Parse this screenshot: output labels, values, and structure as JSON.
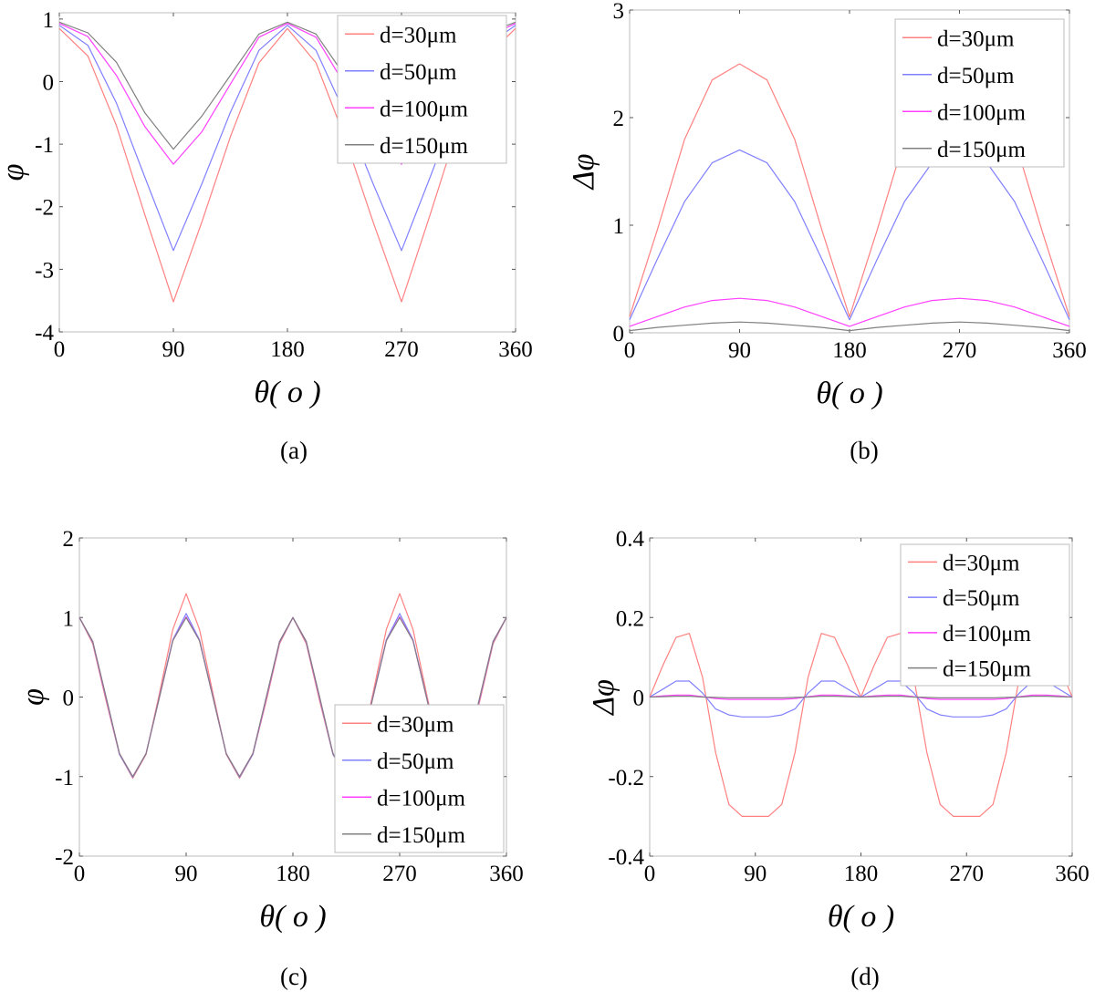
{
  "figure": {
    "captions": [
      "(a)",
      "(b)",
      "(c)",
      "(d)"
    ]
  },
  "chart_data": [
    {
      "type": "line",
      "panel": "(a)",
      "xlabel": "θ( o )",
      "ylabel": "φ",
      "xlim": [
        0,
        360
      ],
      "ylim": [
        -4,
        1.1
      ],
      "xticks": [
        0,
        90,
        180,
        270,
        360
      ],
      "yticks": [
        -4,
        -3,
        -2,
        -1,
        0,
        1
      ],
      "grid": false,
      "legend_position": "top-right",
      "x": [
        0,
        22.5,
        45,
        67.5,
        90,
        112.5,
        135,
        157.5,
        180,
        202.5,
        225,
        247.5,
        270,
        292.5,
        315,
        337.5,
        360
      ],
      "series": [
        {
          "name": "d=30μm",
          "color": "#ff8080",
          "values": [
            0.85,
            0.41,
            -0.7,
            -2.13,
            -3.52,
            -2.24,
            -0.88,
            0.3,
            0.85,
            0.3,
            -0.88,
            -2.24,
            -3.52,
            -2.13,
            -0.7,
            0.41,
            0.85
          ]
        },
        {
          "name": "d=50μm",
          "color": "#8080ff",
          "values": [
            0.9,
            0.58,
            -0.34,
            -1.53,
            -2.7,
            -1.63,
            -0.49,
            0.5,
            0.9,
            0.5,
            -0.49,
            -1.63,
            -2.7,
            -1.53,
            -0.34,
            0.58,
            0.9
          ]
        },
        {
          "name": "d=100μm",
          "color": "#ff40ff",
          "values": [
            0.93,
            0.72,
            0.1,
            -0.72,
            -1.32,
            -0.8,
            -0.04,
            0.71,
            0.93,
            0.71,
            -0.04,
            -0.8,
            -1.32,
            -0.72,
            0.1,
            0.72,
            0.93
          ]
        },
        {
          "name": "d=150μm",
          "color": "#808080",
          "values": [
            0.95,
            0.78,
            0.31,
            -0.5,
            -1.08,
            -0.55,
            0.1,
            0.76,
            0.95,
            0.76,
            0.1,
            -0.55,
            -1.08,
            -0.5,
            0.31,
            0.78,
            0.95
          ]
        }
      ]
    },
    {
      "type": "line",
      "panel": "(b)",
      "xlabel": "θ( o )",
      "ylabel": "Δφ",
      "xlim": [
        0,
        360
      ],
      "ylim": [
        0,
        3
      ],
      "xticks": [
        0,
        90,
        180,
        270,
        360
      ],
      "yticks": [
        0,
        1,
        2,
        3
      ],
      "grid": false,
      "legend_position": "top-right",
      "x": [
        0,
        22.5,
        45,
        67.5,
        90,
        112.5,
        135,
        157.5,
        180,
        202.5,
        225,
        247.5,
        270,
        292.5,
        315,
        337.5,
        360
      ],
      "series": [
        {
          "name": "d=30μm",
          "color": "#ff8080",
          "values": [
            0.15,
            0.95,
            1.8,
            2.35,
            2.5,
            2.35,
            1.8,
            0.95,
            0.15,
            0.95,
            1.8,
            2.35,
            2.5,
            2.35,
            1.8,
            0.95,
            0.15
          ]
        },
        {
          "name": "d=50μm",
          "color": "#8080ff",
          "values": [
            0.12,
            0.68,
            1.22,
            1.58,
            1.7,
            1.58,
            1.22,
            0.68,
            0.12,
            0.68,
            1.22,
            1.58,
            1.7,
            1.58,
            1.22,
            0.68,
            0.12
          ]
        },
        {
          "name": "d=100μm",
          "color": "#ff40ff",
          "values": [
            0.06,
            0.15,
            0.24,
            0.3,
            0.32,
            0.3,
            0.24,
            0.15,
            0.06,
            0.15,
            0.24,
            0.3,
            0.32,
            0.3,
            0.24,
            0.15,
            0.06
          ]
        },
        {
          "name": "d=150μm",
          "color": "#808080",
          "values": [
            0.02,
            0.05,
            0.07,
            0.09,
            0.1,
            0.09,
            0.07,
            0.05,
            0.02,
            0.05,
            0.07,
            0.09,
            0.1,
            0.09,
            0.07,
            0.05,
            0.02
          ]
        }
      ]
    },
    {
      "type": "line",
      "panel": "(c)",
      "xlabel": "θ( o )",
      "ylabel": "φ",
      "xlim": [
        0,
        360
      ],
      "ylim": [
        -2,
        2
      ],
      "xticks": [
        0,
        90,
        180,
        270,
        360
      ],
      "yticks": [
        -2,
        -1,
        0,
        1,
        2
      ],
      "grid": false,
      "legend_position": "bottom-right",
      "x": [
        0,
        11.25,
        22.5,
        33.75,
        45,
        56.25,
        67.5,
        78.75,
        90,
        101.25,
        112.5,
        123.75,
        135,
        146.25,
        157.5,
        168.75,
        180,
        191.25,
        202.5,
        213.75,
        225,
        236.25,
        247.5,
        258.75,
        270,
        281.25,
        292.5,
        303.75,
        315,
        326.25,
        337.5,
        348.75,
        360
      ],
      "series": [
        {
          "name": "d=30μm",
          "color": "#ff8080",
          "values": [
            1,
            0.67,
            -0.05,
            -0.72,
            -1.02,
            -0.72,
            0.05,
            0.85,
            1.3,
            0.85,
            0.05,
            -0.72,
            -1.02,
            -0.72,
            -0.05,
            0.67,
            1,
            0.67,
            -0.05,
            -0.72,
            -1.02,
            -0.72,
            0.05,
            0.85,
            1.3,
            0.85,
            0.05,
            -0.72,
            -1.02,
            -0.72,
            -0.05,
            0.67,
            1
          ]
        },
        {
          "name": "d=50μm",
          "color": "#8080ff",
          "values": [
            1,
            0.69,
            -0.02,
            -0.72,
            -1.01,
            -0.71,
            0.01,
            0.72,
            1.05,
            0.72,
            0.01,
            -0.71,
            -1.01,
            -0.72,
            -0.02,
            0.69,
            1,
            0.69,
            -0.02,
            -0.72,
            -1.01,
            -0.71,
            0.01,
            0.72,
            1.05,
            0.72,
            0.01,
            -0.71,
            -1.01,
            -0.72,
            -0.02,
            0.69,
            1
          ]
        },
        {
          "name": "d=100μm",
          "color": "#ff40ff",
          "values": [
            1,
            0.7,
            -0.01,
            -0.71,
            -1.0,
            -0.71,
            0.0,
            0.71,
            1.01,
            0.71,
            0.0,
            -0.71,
            -1.0,
            -0.71,
            -0.01,
            0.7,
            1,
            0.7,
            -0.01,
            -0.71,
            -1.0,
            -0.71,
            0.0,
            0.71,
            1.01,
            0.71,
            0.0,
            -0.71,
            -1.0,
            -0.71,
            -0.01,
            0.7,
            1
          ]
        },
        {
          "name": "d=150μm",
          "color": "#808080",
          "values": [
            1,
            0.7,
            0.0,
            -0.71,
            -1.0,
            -0.71,
            0.0,
            0.71,
            1.0,
            0.71,
            0.0,
            -0.71,
            -1.0,
            -0.71,
            0.0,
            0.7,
            1,
            0.7,
            0.0,
            -0.71,
            -1.0,
            -0.71,
            0.0,
            0.71,
            1.0,
            0.71,
            0.0,
            -0.71,
            -1.0,
            -0.71,
            0.0,
            0.7,
            1
          ]
        }
      ]
    },
    {
      "type": "line",
      "panel": "(d)",
      "xlabel": "θ( o )",
      "ylabel": "Δφ",
      "xlim": [
        0,
        360
      ],
      "ylim": [
        -0.4,
        0.4
      ],
      "xticks": [
        0,
        90,
        180,
        270,
        360
      ],
      "yticks": [
        -0.4,
        -0.2,
        0,
        0.2,
        0.4
      ],
      "grid": false,
      "legend_position": "top-right",
      "x": [
        0,
        11.25,
        22.5,
        33.75,
        45,
        56.25,
        67.5,
        78.75,
        90,
        101.25,
        112.5,
        123.75,
        135,
        146.25,
        157.5,
        168.75,
        180,
        191.25,
        202.5,
        213.75,
        225,
        236.25,
        247.5,
        258.75,
        270,
        281.25,
        292.5,
        303.75,
        315,
        326.25,
        337.5,
        348.75,
        360
      ],
      "series": [
        {
          "name": "d=30μm",
          "color": "#ff8080",
          "values": [
            0,
            0.08,
            0.15,
            0.16,
            0.05,
            -0.14,
            -0.27,
            -0.3,
            -0.3,
            -0.3,
            -0.27,
            -0.14,
            0.05,
            0.16,
            0.15,
            0.08,
            0,
            0.08,
            0.15,
            0.16,
            0.05,
            -0.14,
            -0.27,
            -0.3,
            -0.3,
            -0.3,
            -0.27,
            -0.14,
            0.05,
            0.16,
            0.15,
            0.08,
            0
          ]
        },
        {
          "name": "d=50μm",
          "color": "#8080ff",
          "values": [
            0,
            0.02,
            0.04,
            0.04,
            0.01,
            -0.03,
            -0.045,
            -0.05,
            -0.05,
            -0.05,
            -0.045,
            -0.03,
            0.01,
            0.04,
            0.04,
            0.02,
            0,
            0.02,
            0.04,
            0.04,
            0.01,
            -0.03,
            -0.045,
            -0.05,
            -0.05,
            -0.05,
            -0.045,
            -0.03,
            0.01,
            0.04,
            0.04,
            0.02,
            0
          ]
        },
        {
          "name": "d=100μm",
          "color": "#ff40ff",
          "values": [
            0,
            0.003,
            0.005,
            0.005,
            0.001,
            -0.004,
            -0.006,
            -0.006,
            -0.006,
            -0.006,
            -0.006,
            -0.004,
            0.001,
            0.005,
            0.005,
            0.003,
            0,
            0.003,
            0.005,
            0.005,
            0.001,
            -0.004,
            -0.006,
            -0.006,
            -0.006,
            -0.006,
            -0.006,
            -0.004,
            0.001,
            0.005,
            0.005,
            0.003,
            0
          ]
        },
        {
          "name": "d=150μm",
          "color": "#808080",
          "values": [
            0,
            0.001,
            0.002,
            0.002,
            0.0,
            -0.001,
            -0.002,
            -0.002,
            -0.002,
            -0.002,
            -0.002,
            -0.001,
            0.0,
            0.002,
            0.002,
            0.001,
            0,
            0.001,
            0.002,
            0.002,
            0.0,
            -0.001,
            -0.002,
            -0.002,
            -0.002,
            -0.002,
            -0.002,
            -0.001,
            0.0,
            0.002,
            0.002,
            0.001,
            0
          ]
        }
      ]
    }
  ]
}
